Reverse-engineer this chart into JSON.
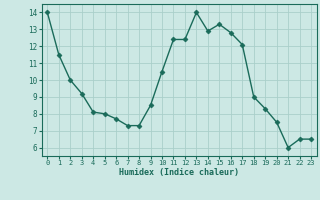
{
  "x": [
    0,
    1,
    2,
    3,
    4,
    5,
    6,
    7,
    8,
    9,
    10,
    11,
    12,
    13,
    14,
    15,
    16,
    17,
    18,
    19,
    20,
    21,
    22,
    23
  ],
  "y": [
    14.0,
    11.5,
    10.0,
    9.2,
    8.1,
    8.0,
    7.7,
    7.3,
    7.3,
    8.5,
    10.5,
    12.4,
    12.4,
    14.0,
    12.9,
    13.3,
    12.8,
    12.1,
    9.0,
    8.3,
    7.5,
    6.0,
    6.5,
    6.5
  ],
  "title": "",
  "xlabel": "Humidex (Indice chaleur)",
  "ylabel": "",
  "xlim": [
    -0.5,
    23.5
  ],
  "ylim": [
    5.5,
    14.5
  ],
  "yticks": [
    6,
    7,
    8,
    9,
    10,
    11,
    12,
    13,
    14
  ],
  "xticks": [
    0,
    1,
    2,
    3,
    4,
    5,
    6,
    7,
    8,
    9,
    10,
    11,
    12,
    13,
    14,
    15,
    16,
    17,
    18,
    19,
    20,
    21,
    22,
    23
  ],
  "line_color": "#1a6b5a",
  "marker_color": "#1a6b5a",
  "bg_color": "#cce8e4",
  "grid_color": "#aacfca",
  "axis_color": "#1a6b5a",
  "label_color": "#1a6b5a"
}
